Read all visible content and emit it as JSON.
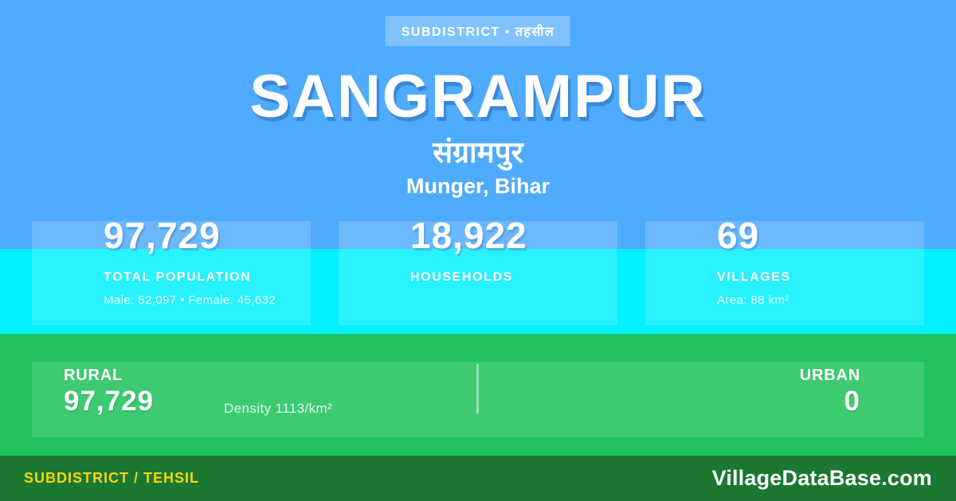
{
  "badge": {
    "label": "SUBDISTRICT • तहसील"
  },
  "header": {
    "title": "SANGRAMPUR",
    "native_title": "संग्रामपुर",
    "location": "Munger, Bihar"
  },
  "stats": [
    {
      "value": "97,729",
      "label": "TOTAL POPULATION",
      "sub": "Male: 52,097 • Female: 45,632"
    },
    {
      "value": "18,922",
      "label": "HOUSEHOLDS",
      "sub": ""
    },
    {
      "value": "69",
      "label": "VILLAGES",
      "sub": "Area: 88 km²"
    }
  ],
  "rural_urban": {
    "rural_label": "RURAL",
    "rural_value": "97,729",
    "density": "Density 1113/km²",
    "urban_label": "URBAN",
    "urban_value": "0"
  },
  "footer": {
    "left_label": "SUBDISTRICT / TEHSIL",
    "site": "VillageDataBase.com"
  },
  "colors": {
    "blue_background": "#4fabfe",
    "cyan_band": "#00f0ff",
    "green_band": "#21c35c",
    "footer_green": "#1a7830",
    "accent_yellow": "#f8d411",
    "title_shadow_blue": "#2f71bc"
  }
}
